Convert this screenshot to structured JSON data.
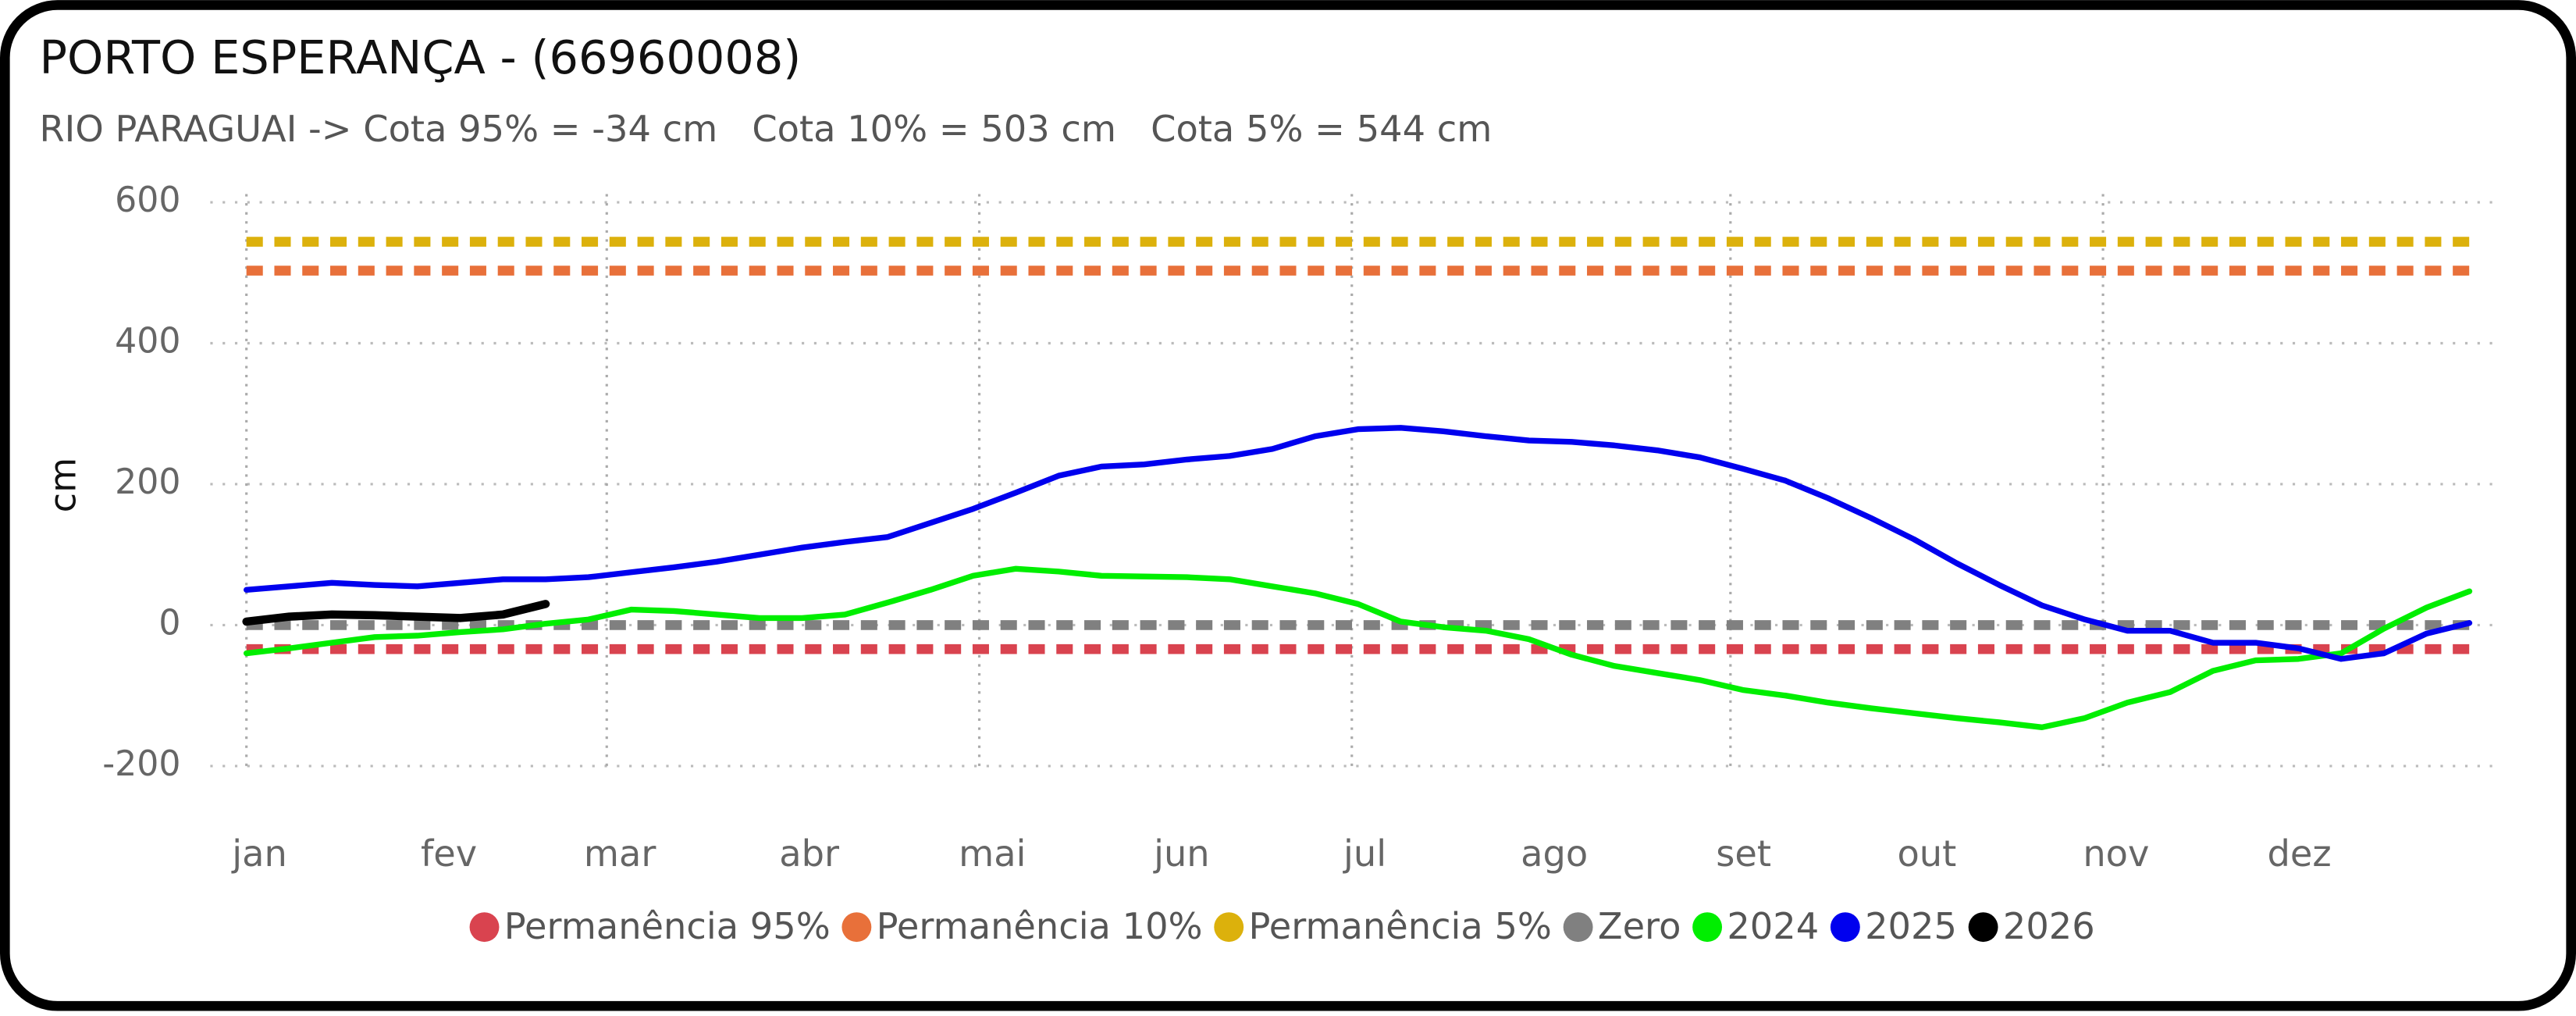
{
  "chart_data": {
    "type": "line",
    "title": "PORTO ESPERANÇA - (66960008)",
    "subtitle": "RIO PARAGUAI -> Cota 95% = -34 cm   Cota 10% = 503 cm   Cota 5% = 544 cm",
    "y_label": "cm",
    "xlim": [
      0,
      368
    ],
    "ylim": [
      -200,
      600
    ],
    "yticks": [
      -200,
      0,
      200,
      400,
      600
    ],
    "xticks": [
      {
        "value": 0,
        "label": "jan"
      },
      {
        "value": 31,
        "label": "fev"
      },
      {
        "value": 59,
        "label": "mar"
      },
      {
        "value": 90,
        "label": "abr"
      },
      {
        "value": 120,
        "label": "mai"
      },
      {
        "value": 151,
        "label": "jun"
      },
      {
        "value": 181,
        "label": "jul"
      },
      {
        "value": 212,
        "label": "ago"
      },
      {
        "value": 243,
        "label": "set"
      },
      {
        "value": 273,
        "label": "out"
      },
      {
        "value": 304,
        "label": "nov"
      },
      {
        "value": 334,
        "label": "dez"
      }
    ],
    "grid": true,
    "x": [
      0,
      7,
      14,
      21,
      28,
      35,
      42,
      49,
      56,
      63,
      70,
      77,
      84,
      91,
      98,
      105,
      112,
      119,
      126,
      133,
      140,
      147,
      154,
      161,
      168,
      175,
      182,
      189,
      196,
      203,
      210,
      217,
      224,
      231,
      238,
      245,
      252,
      259,
      266,
      273,
      280,
      287,
      294,
      301,
      308,
      315,
      322,
      329,
      336,
      343,
      350,
      357,
      364
    ],
    "series": [
      {
        "name": "Permanência 95%",
        "color": "#d9434f",
        "value": -34,
        "dashed": true
      },
      {
        "name": "Permanência 10%",
        "color": "#e8703a",
        "value": 503,
        "dashed": true
      },
      {
        "name": "Permanência 5%",
        "color": "#dcb10c",
        "value": 544,
        "dashed": true
      },
      {
        "name": "Zero",
        "color": "#808080",
        "value": 0,
        "dashed": true
      },
      {
        "name": "2024",
        "color": "#00ee00",
        "values": [
          -40,
          -33,
          -25,
          -17,
          -15,
          -10,
          -6,
          2,
          8,
          22,
          20,
          15,
          10,
          10,
          15,
          32,
          50,
          70,
          80,
          76,
          70,
          69,
          68,
          65,
          55,
          45,
          30,
          5,
          -3,
          -8,
          -20,
          -42,
          -58,
          -68,
          -78,
          -92,
          -100,
          -110,
          -118,
          -125,
          -132,
          -138,
          -145,
          -132,
          -110,
          -95,
          -65,
          -50,
          -48,
          -40,
          -5,
          25,
          48
        ]
      },
      {
        "name": "2025",
        "color": "#0000ee",
        "values": [
          50,
          55,
          60,
          57,
          55,
          60,
          65,
          65,
          68,
          75,
          82,
          90,
          100,
          110,
          118,
          125,
          145,
          165,
          188,
          212,
          225,
          228,
          235,
          240,
          250,
          268,
          278,
          280,
          275,
          268,
          262,
          260,
          255,
          248,
          238,
          222,
          205,
          180,
          152,
          122,
          88,
          57,
          28,
          8,
          -8,
          -8,
          -25,
          -25,
          -33,
          -48,
          -40,
          -12,
          3
        ]
      },
      {
        "name": "2026",
        "color": "#000000",
        "values": [
          5,
          12,
          15,
          14,
          12,
          10,
          15,
          30,
          null,
          null,
          null,
          null,
          null,
          null,
          null,
          null,
          null,
          null,
          null,
          null,
          null,
          null,
          null,
          null,
          null,
          null,
          null,
          null,
          null,
          null,
          null,
          null,
          null,
          null,
          null,
          null,
          null,
          null,
          null,
          null,
          null,
          null,
          null,
          null,
          null,
          null,
          null,
          null,
          null,
          null,
          null,
          null,
          null
        ]
      }
    ]
  }
}
